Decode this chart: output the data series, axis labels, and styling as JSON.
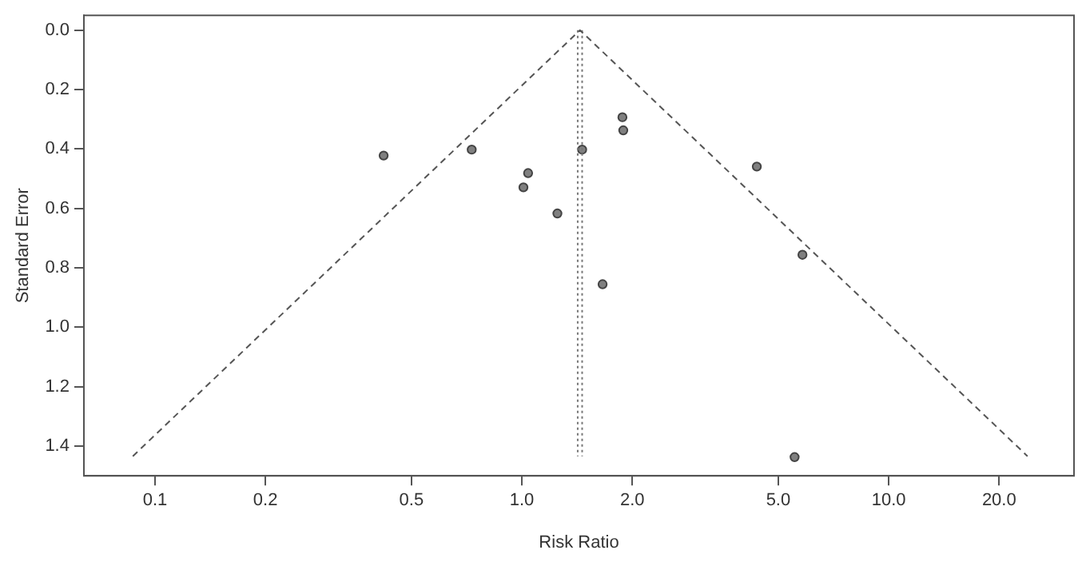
{
  "chart_data": {
    "type": "scatter",
    "xlabel": "Risk Ratio",
    "ylabel": "Standard Error",
    "log": "x",
    "xlim": [
      0.064,
      32
    ],
    "xticks": [
      0.1,
      0.2,
      0.5,
      {
        "value": 1,
        "label": "1.0"
      },
      {
        "value": 2,
        "label": "2.0"
      },
      {
        "value": 5,
        "label": "5.0"
      },
      {
        "value": 10,
        "label": "10.0"
      },
      {
        "value": 20,
        "label": "20.0"
      }
    ],
    "ylim": [
      1.5,
      -0.05
    ],
    "yticks": [
      {
        "value": 0,
        "label": "0.0"
      },
      0.2,
      0.4,
      0.6,
      0.8,
      {
        "value": 1,
        "label": "1.0"
      },
      1.2,
      1.4
    ],
    "series": [
      {
        "type": "line",
        "color": "#555555",
        "line_style": "dashed",
        "marker": "none",
        "x": [
          0.087,
          1.44,
          23.9
        ],
        "values": [
          1.434,
          0,
          1.434
        ]
      },
      {
        "type": "line",
        "color": "#777777",
        "line_style": "dotted",
        "marker": "none",
        "x": [
          1.42,
          1.42
        ],
        "values": [
          0,
          1.434
        ]
      },
      {
        "type": "line",
        "color": "#777777",
        "line_style": "dotted",
        "marker": "none",
        "x": [
          1.46,
          1.46
        ],
        "values": [
          0,
          1.434
        ]
      },
      {
        "color": "#808080",
        "marker": "circle",
        "x": [
          0.42,
          0.73,
          1.04,
          1.01,
          1.25,
          1.46,
          1.88,
          1.89,
          1.66,
          4.37,
          5.82,
          5.54
        ],
        "values": [
          0.422,
          0.402,
          0.481,
          0.529,
          0.617,
          0.402,
          0.293,
          0.337,
          0.855,
          0.459,
          0.756,
          1.437
        ]
      }
    ]
  }
}
